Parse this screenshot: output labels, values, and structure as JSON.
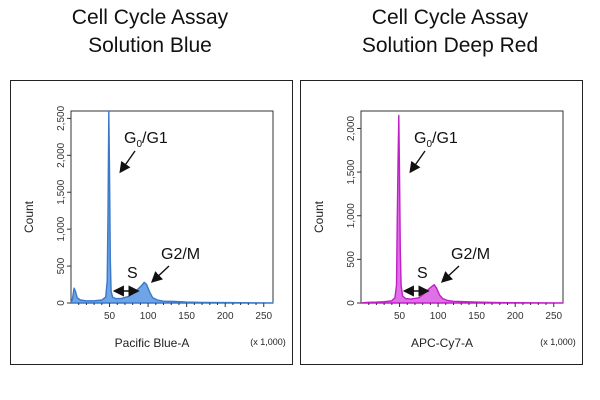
{
  "chart_data": [
    {
      "type": "area",
      "title": [
        "Cell Cycle Assay",
        "Solution Blue"
      ],
      "xlabel": "Pacific Blue-A",
      "x_unit": "(x 1,000)",
      "ylabel": "Count",
      "xlim": [
        0,
        262
      ],
      "ylim": [
        0,
        2600
      ],
      "xticks": [
        50,
        100,
        150,
        200,
        250
      ],
      "yticks": [
        0,
        500,
        1000,
        1500,
        2000,
        2500
      ],
      "ytick_labels": [
        "0",
        "500",
        "1,000",
        "1,500",
        "2,000",
        "2,500"
      ],
      "color": "#3a78c8",
      "fill_color": "#6fa5e6",
      "series": [
        {
          "x": [
            0,
            2,
            4,
            6,
            8,
            12,
            20,
            30,
            40,
            45,
            47,
            48,
            49,
            50,
            51,
            52,
            54,
            58,
            65,
            75,
            82,
            88,
            92,
            95,
            98,
            102,
            106,
            112,
            120,
            135,
            150,
            170,
            200,
            262
          ],
          "y": [
            0,
            60,
            200,
            150,
            70,
            40,
            30,
            30,
            40,
            80,
            300,
            1200,
            2600,
            1800,
            600,
            160,
            80,
            60,
            60,
            90,
            140,
            200,
            240,
            280,
            250,
            150,
            70,
            40,
            25,
            20,
            12,
            8,
            5,
            0
          ]
        }
      ],
      "annotations": {
        "peak1_main": "G",
        "peak1_sub": "0",
        "peak1_rest": "/G1",
        "s_phase": "S",
        "peak2": "G2/M"
      }
    },
    {
      "type": "area",
      "title": [
        "Cell Cycle Assay",
        "Solution Deep Red"
      ],
      "xlabel": "APC-Cy7-A",
      "x_unit": "(x 1,000)",
      "ylabel": "Count",
      "xlim": [
        0,
        262
      ],
      "ylim": [
        0,
        2200
      ],
      "xticks": [
        50,
        100,
        150,
        200,
        250
      ],
      "yticks": [
        0,
        500,
        1000,
        1500,
        2000
      ],
      "ytick_labels": [
        "0",
        "500",
        "1,000",
        "1,500",
        "2,000"
      ],
      "color": "#c020c8",
      "fill_color": "#e070e6",
      "series": [
        {
          "x": [
            0,
            5,
            10,
            20,
            30,
            40,
            44,
            46,
            47,
            48,
            49,
            50,
            51,
            52,
            54,
            58,
            65,
            75,
            82,
            88,
            92,
            95,
            98,
            102,
            106,
            112,
            120,
            135,
            150,
            170,
            200,
            262
          ],
          "y": [
            0,
            5,
            8,
            10,
            15,
            25,
            60,
            200,
            900,
            1600,
            2150,
            1500,
            600,
            200,
            80,
            50,
            45,
            60,
            110,
            160,
            190,
            210,
            170,
            90,
            50,
            30,
            20,
            15,
            10,
            6,
            4,
            0
          ]
        }
      ],
      "annotations": {
        "peak1_main": "G",
        "peak1_sub": "0",
        "peak1_rest": "/G1",
        "s_phase": "S",
        "peak2": "G2/M"
      }
    }
  ]
}
